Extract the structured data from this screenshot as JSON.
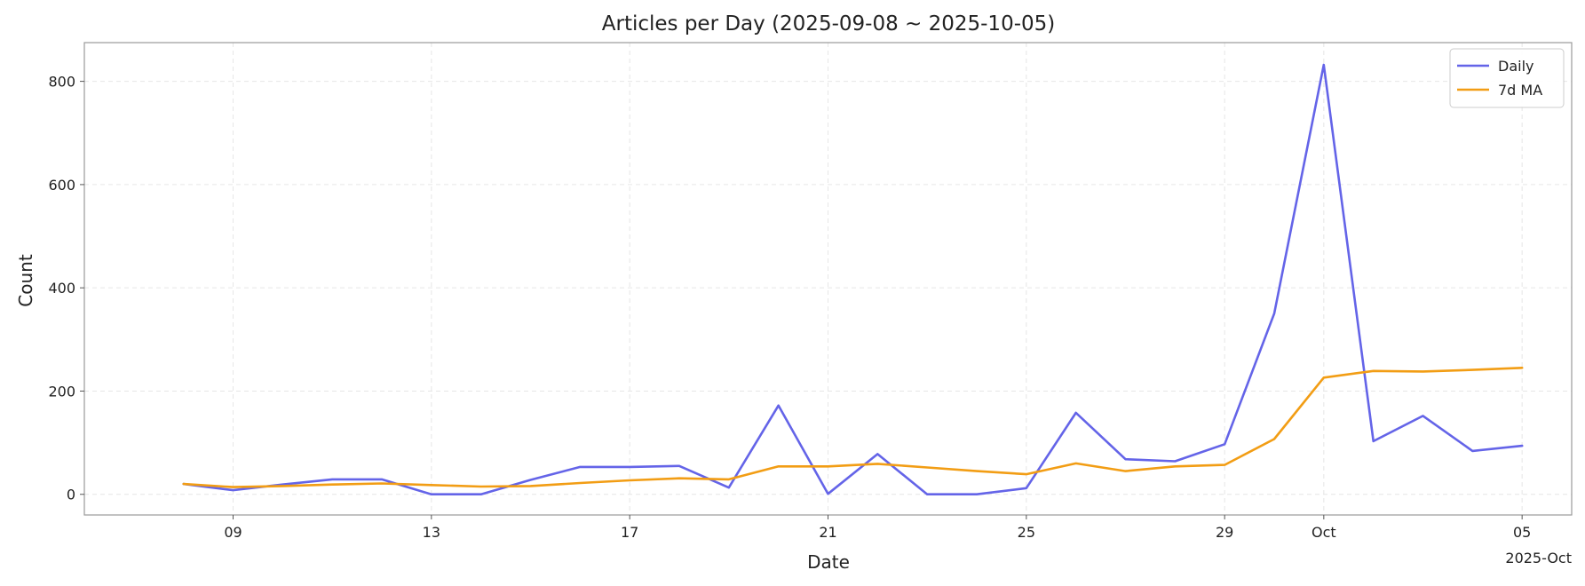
{
  "chart_data": {
    "type": "line",
    "title": "Articles per Day (2025-09-08 ~ 2025-10-05)",
    "xlabel": "Date",
    "ylabel": "Count",
    "x_offset_label": "2025-Oct",
    "x": [
      "2025-09-08",
      "2025-09-09",
      "2025-09-10",
      "2025-09-11",
      "2025-09-12",
      "2025-09-13",
      "2025-09-14",
      "2025-09-15",
      "2025-09-16",
      "2025-09-17",
      "2025-09-18",
      "2025-09-19",
      "2025-09-20",
      "2025-09-21",
      "2025-09-22",
      "2025-09-23",
      "2025-09-24",
      "2025-09-25",
      "2025-09-26",
      "2025-09-27",
      "2025-09-28",
      "2025-09-29",
      "2025-09-30",
      "2025-10-01",
      "2025-10-02",
      "2025-10-03",
      "2025-10-04",
      "2025-10-05"
    ],
    "xlim": [
      "2025-09-06",
      "2025-10-06"
    ],
    "ylim": [
      -40,
      875
    ],
    "x_ticks": [
      {
        "date": "2025-09-09",
        "label": "09"
      },
      {
        "date": "2025-09-13",
        "label": "13"
      },
      {
        "date": "2025-09-17",
        "label": "17"
      },
      {
        "date": "2025-09-21",
        "label": "21"
      },
      {
        "date": "2025-09-25",
        "label": "25"
      },
      {
        "date": "2025-09-29",
        "label": "29"
      },
      {
        "date": "2025-10-01",
        "label": "Oct"
      },
      {
        "date": "2025-10-05",
        "label": "05"
      }
    ],
    "y_ticks": [
      0,
      200,
      400,
      600,
      800
    ],
    "grid": true,
    "legend_position": "top-right",
    "series": [
      {
        "name": "Daily",
        "color": "#6464e8",
        "values": [
          20,
          8,
          19,
          29,
          29,
          0,
          0,
          28,
          53,
          53,
          55,
          13,
          172,
          1,
          78,
          0,
          0,
          12,
          158,
          68,
          64,
          97,
          350,
          832,
          103,
          152,
          84,
          94
        ]
      },
      {
        "name": "7d MA",
        "color": "#f29d14",
        "values": [
          20,
          14,
          16,
          19,
          21,
          18,
          15,
          16,
          22,
          27,
          31,
          29,
          54,
          54,
          59,
          52,
          45,
          39,
          60,
          45,
          54,
          57,
          107,
          226,
          239,
          238,
          241,
          245
        ]
      }
    ]
  }
}
